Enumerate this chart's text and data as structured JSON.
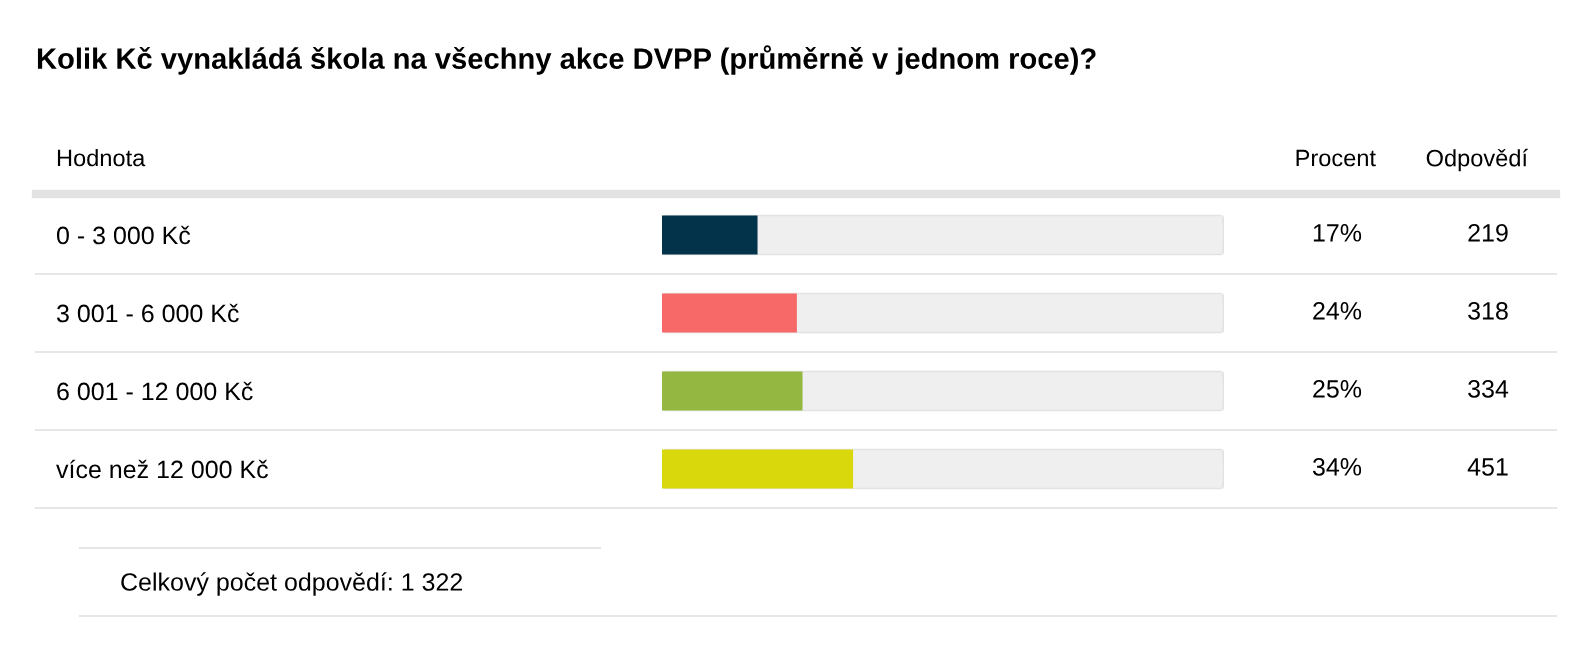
{
  "chart_data": {
    "type": "bar",
    "orientation": "horizontal",
    "title": "Kolik Kč vynakládá škola na všechny akce DVPP (průměrně v jednom roce)?",
    "ylabel": "Hodnota",
    "xlabel": "Procent",
    "categories": [
      "0 - 3 000 Kč",
      "3 001 - 6 000 Kč",
      "6 001 - 12 000 Kč",
      "více než 12 000 Kč"
    ],
    "values": [
      17,
      24,
      25,
      34
    ],
    "colors": [
      "#03334a",
      "#f76868",
      "#93b740",
      "#d9d80d"
    ],
    "value_labels": [
      "17%",
      "24%",
      "25%",
      "34%"
    ],
    "xlim": [
      0,
      100
    ],
    "tick_labels": "y",
    "grid": false,
    "legend": false,
    "annotations": [
      "Odpovědí",
      "219",
      "318",
      "334",
      "451",
      "Celkový počet odpovědí: 1 322"
    ]
  }
}
